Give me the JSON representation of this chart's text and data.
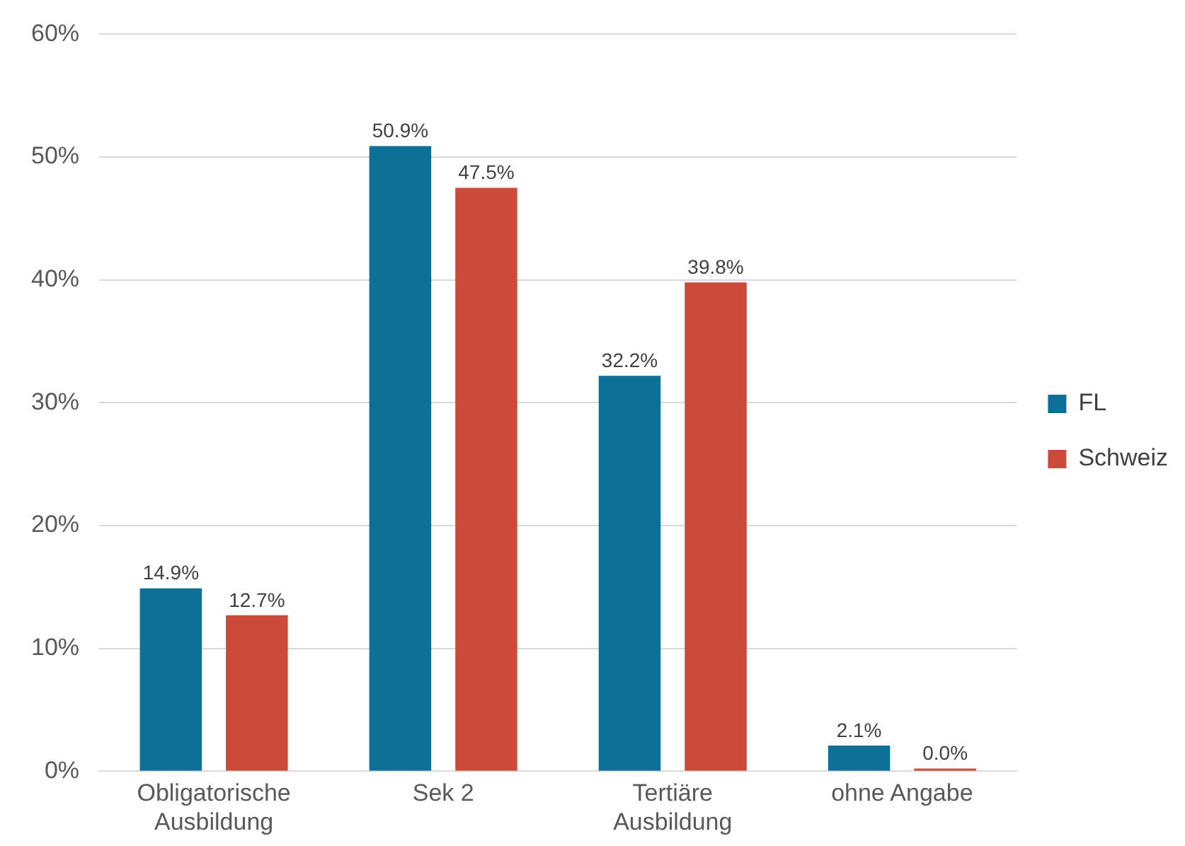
{
  "chart_data": {
    "type": "bar",
    "categories": [
      "Obligatorische Ausbildung",
      "Sek 2",
      "Tertiäre Ausbildung",
      "ohne Angabe"
    ],
    "series": [
      {
        "name": "FL",
        "color": "#0e7096",
        "values": [
          14.9,
          50.9,
          32.2,
          2.1
        ],
        "value_labels": [
          "14.9%",
          "50.9%",
          "32.2%",
          "2.1%"
        ]
      },
      {
        "name": "Schweiz",
        "color": "#cc4a3a",
        "values": [
          12.7,
          47.5,
          39.8,
          0.0
        ],
        "value_labels": [
          "12.7%",
          "47.5%",
          "39.8%",
          "0.0%"
        ]
      }
    ],
    "ylim": [
      0,
      60
    ],
    "yticks": [
      {
        "value": 0,
        "label": "0%"
      },
      {
        "value": 10,
        "label": "10%"
      },
      {
        "value": 20,
        "label": "20%"
      },
      {
        "value": 30,
        "label": "30%"
      },
      {
        "value": 40,
        "label": "40%"
      },
      {
        "value": 50,
        "label": "50%"
      },
      {
        "value": 60,
        "label": "60%"
      }
    ],
    "grid": "y",
    "legend": "right"
  }
}
